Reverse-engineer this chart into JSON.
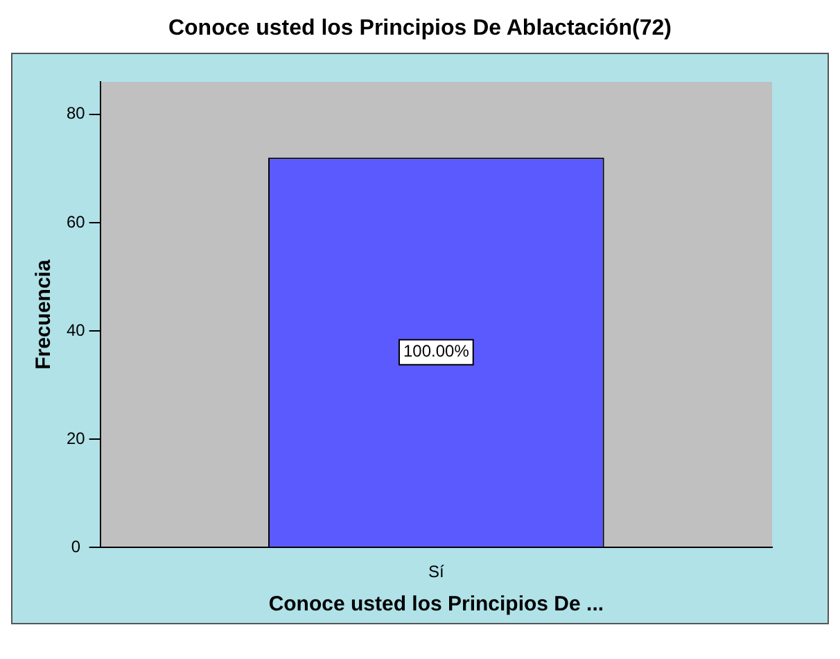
{
  "chart_data": {
    "type": "bar",
    "title": "Conoce usted los Principios De Ablactación(72)",
    "xlabel": "Conoce usted los Principios De ...",
    "ylabel": "Frecuencia",
    "categories": [
      "Sí"
    ],
    "values": [
      72
    ],
    "annotations": [
      "100.00%"
    ],
    "color": "#5a5aff",
    "ylim": [
      0,
      86
    ],
    "yticks": [
      0,
      20,
      40,
      60,
      80
    ],
    "grid": false,
    "legend": false
  }
}
